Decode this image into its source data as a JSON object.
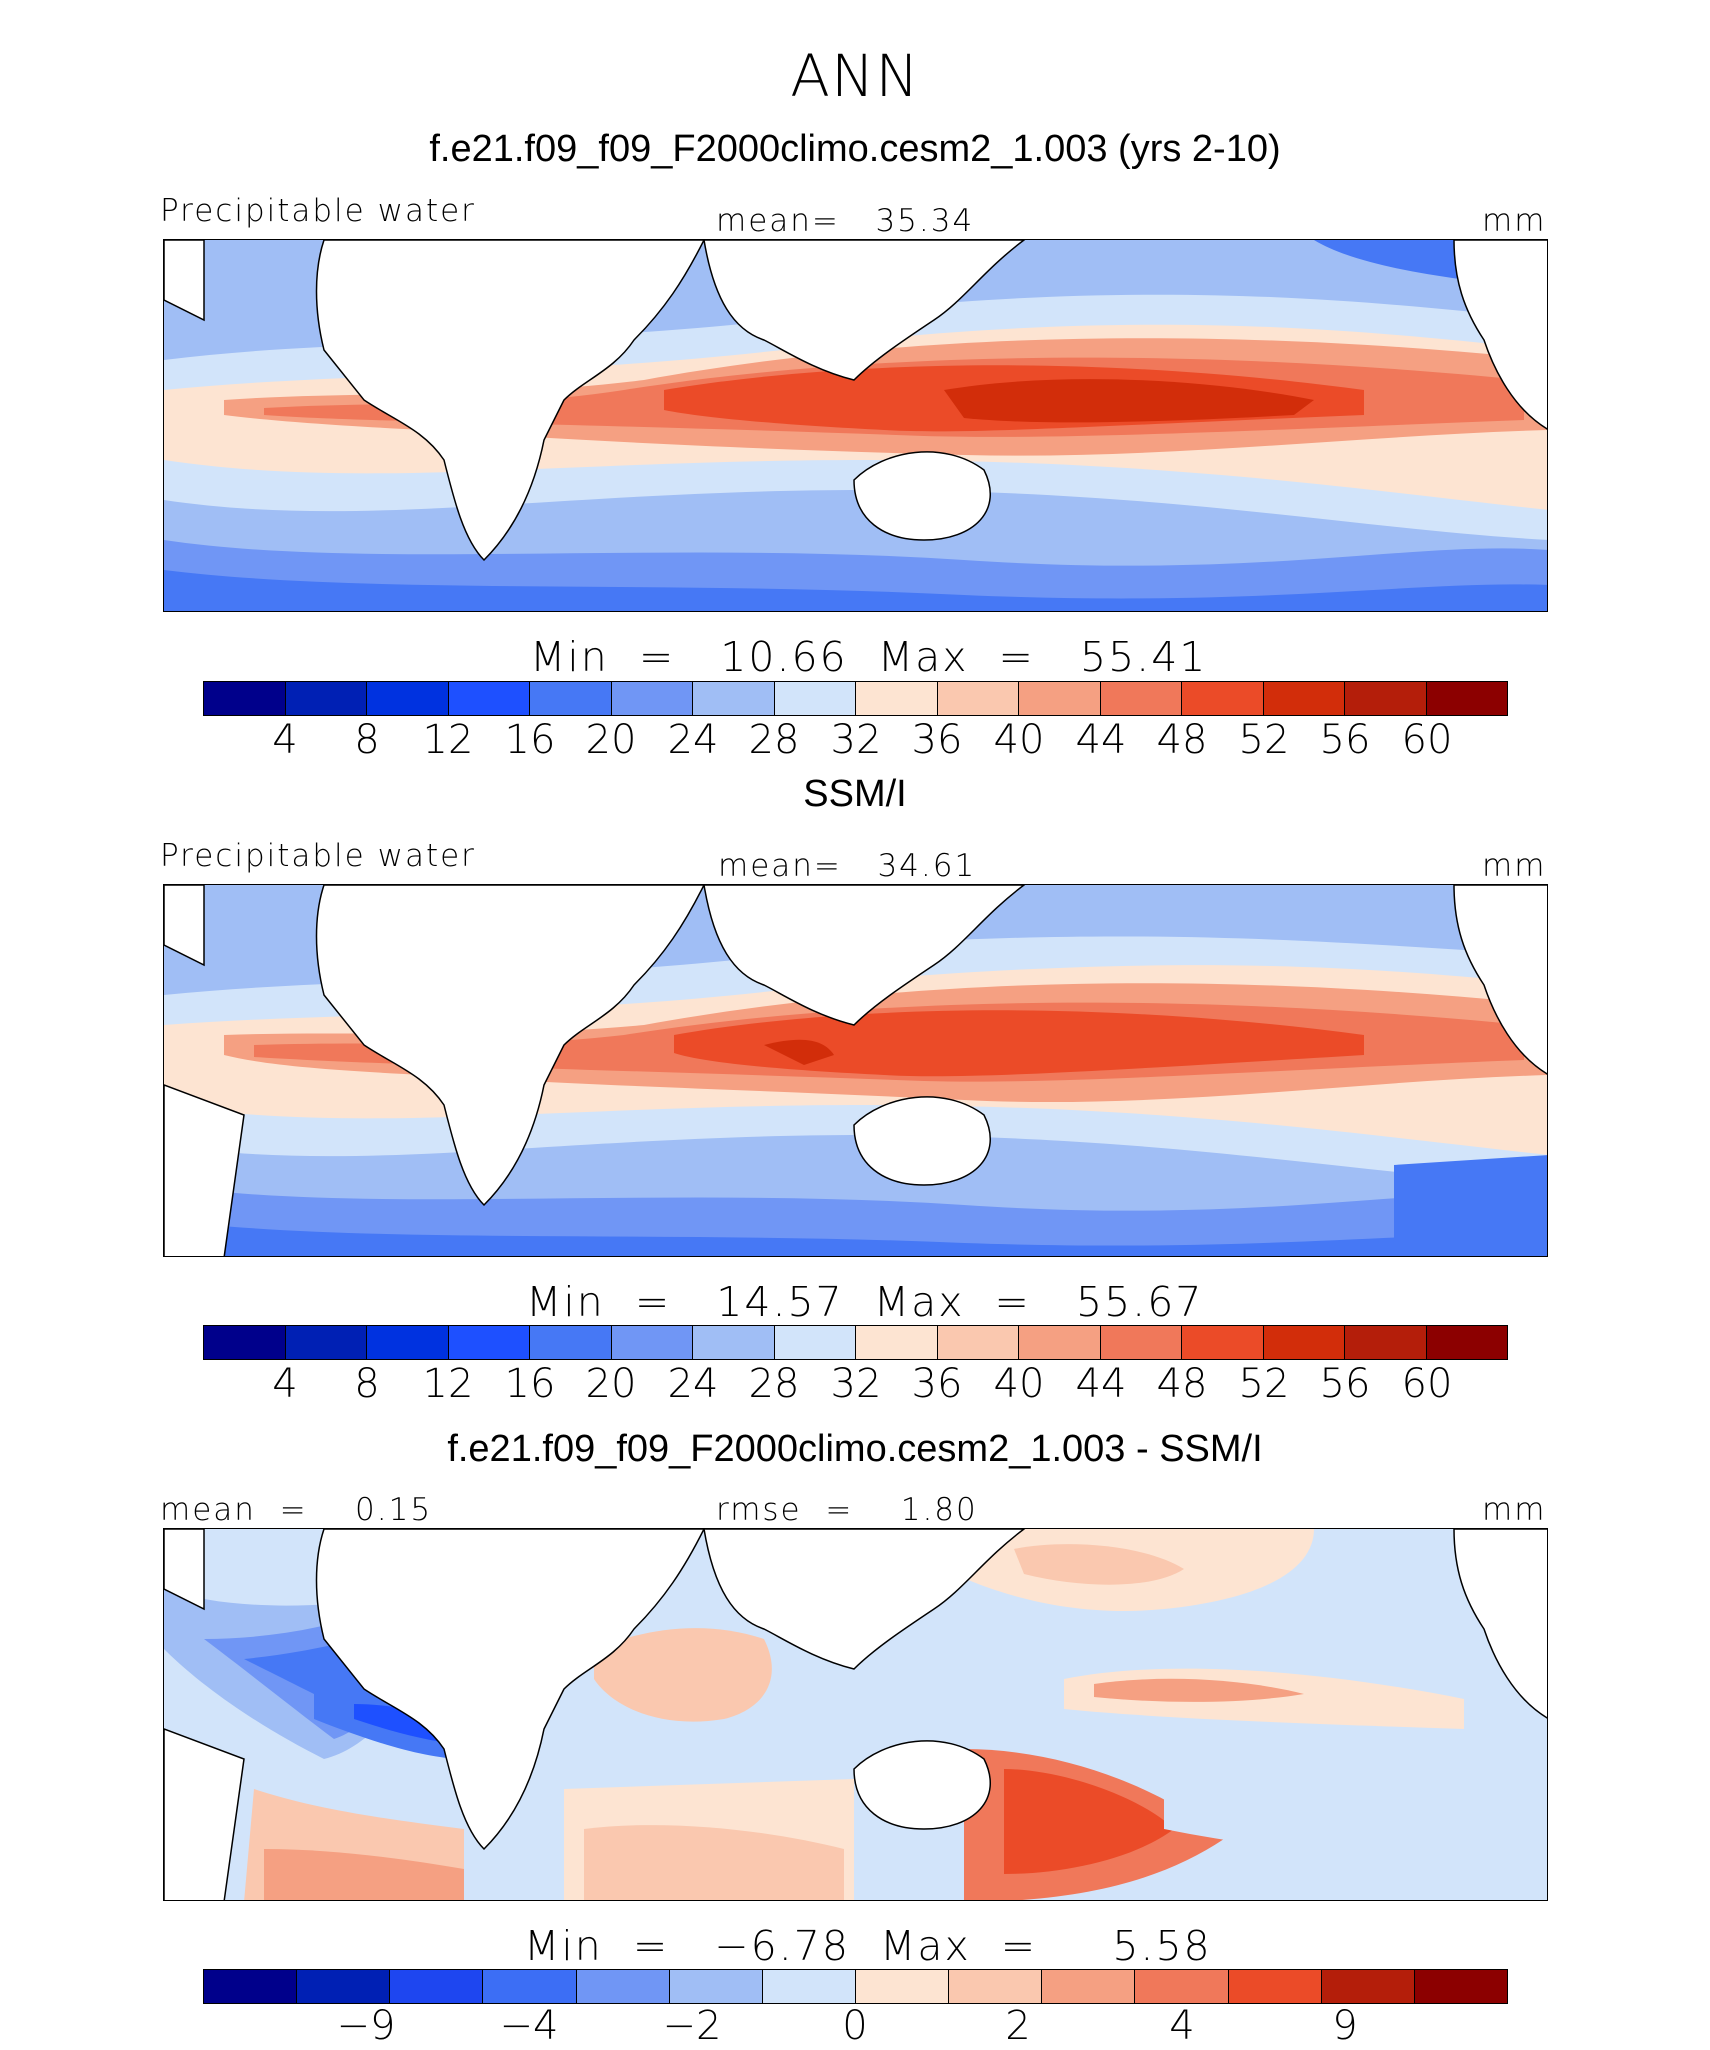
{
  "figure": {
    "season": "ANN",
    "panels": [
      {
        "title": "f.e21.f09_f09_F2000climo.cesm2_1.003 (yrs 2-10)",
        "left_label": "Precipitable water",
        "center_label": "mean=   35.34",
        "units": "mm",
        "minmax_label": "Min  =   10.66  Max  =   55.41",
        "min": 10.66,
        "max": 55.41,
        "mean": 35.34,
        "colorbar_ticks": [
          "4",
          "8",
          "12",
          "16",
          "20",
          "24",
          "28",
          "32",
          "36",
          "40",
          "44",
          "48",
          "52",
          "56",
          "60"
        ]
      },
      {
        "title": "SSM/I",
        "left_label": "Precipitable water",
        "center_label": "mean=   34.61",
        "units": "mm",
        "minmax_label": "Min  =   14.57  Max  =   55.67",
        "min": 14.57,
        "max": 55.67,
        "mean": 34.61,
        "colorbar_ticks": [
          "4",
          "8",
          "12",
          "16",
          "20",
          "24",
          "28",
          "32",
          "36",
          "40",
          "44",
          "48",
          "52",
          "56",
          "60"
        ]
      },
      {
        "title": "f.e21.f09_f09_F2000climo.cesm2_1.003 - SSM/I",
        "left_label": "mean  =    0.15",
        "center_label": "rmse  =    1.80",
        "units": "mm",
        "minmax_label": "Min  =   −6.78  Max  =     5.58",
        "min": -6.78,
        "max": 5.58,
        "mean": 0.15,
        "rmse": 1.8,
        "colorbar_ticks": [
          "−9",
          "−4",
          "−2",
          "0",
          "2",
          "4",
          "9"
        ]
      }
    ],
    "colors": {
      "colorbar_16": [
        "#00008b",
        "#0020b4",
        "#0032e0",
        "#1e50ff",
        "#4678f5",
        "#7096f5",
        "#a0bef5",
        "#d2e4fa",
        "#fde4d2",
        "#fac8af",
        "#f5a082",
        "#f0785a",
        "#eb4b28",
        "#d22d0a",
        "#b41e0a",
        "#8c0000"
      ],
      "colorbar_14": [
        "#00008b",
        "#0020b4",
        "#1e46f0",
        "#3c6ef5",
        "#7096f5",
        "#a0bef5",
        "#d2e4fa",
        "#fde4d2",
        "#fac8af",
        "#f5a082",
        "#f0785a",
        "#eb4b28",
        "#b41e0a",
        "#8c0000"
      ],
      "ocean_mid": "#d2e4fa",
      "land": "#ffffff"
    }
  }
}
